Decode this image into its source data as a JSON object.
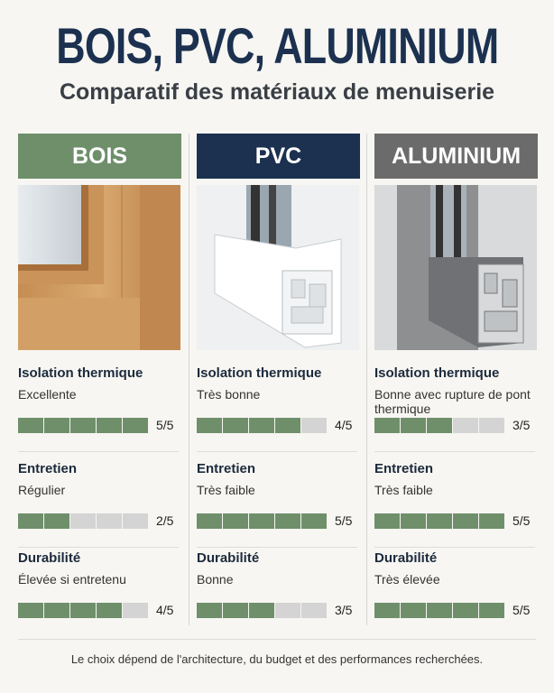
{
  "header": {
    "title": "BOIS, PVC, ALUMINIUM",
    "subtitle": "Comparatif des matériaux de menuiserie"
  },
  "columns": [
    {
      "name": "BOIS",
      "color": "#6f8f6b",
      "criteria": [
        {
          "label": "Isolation thermique",
          "value": "Excellente",
          "score": 5,
          "out_of": 5,
          "rating": "5/5"
        },
        {
          "label": "Entretien",
          "value": "Régulier",
          "score": 2,
          "out_of": 5,
          "rating": "2/5"
        },
        {
          "label": "Durabilité",
          "value": "Élevée si entretenu",
          "score": 4,
          "out_of": 5,
          "rating": "4/5"
        }
      ]
    },
    {
      "name": "PVC",
      "color": "#1c3150",
      "criteria": [
        {
          "label": "Isolation thermique",
          "value": "Très bonne",
          "score": 4,
          "out_of": 5,
          "rating": "4/5"
        },
        {
          "label": "Entretien",
          "value": "Très faible",
          "score": 5,
          "out_of": 5,
          "rating": "5/5"
        },
        {
          "label": "Durabilité",
          "value": "Bonne",
          "score": 3,
          "out_of": 5,
          "rating": "3/5"
        }
      ]
    },
    {
      "name": "ALUMINIUM",
      "color": "#6b6b6b",
      "criteria": [
        {
          "label": "Isolation thermique",
          "value": "Bonne avec rupture de pont thermique",
          "score": 3,
          "out_of": 5,
          "rating": "3/5"
        },
        {
          "label": "Entretien",
          "value": "Très faible",
          "score": 5,
          "out_of": 5,
          "rating": "5/5"
        },
        {
          "label": "Durabilité",
          "value": "Très élevée",
          "score": 5,
          "out_of": 5,
          "rating": "5/5"
        }
      ]
    }
  ],
  "footer": "Le choix dépend de l'architecture, du budget et des performances recherchées."
}
